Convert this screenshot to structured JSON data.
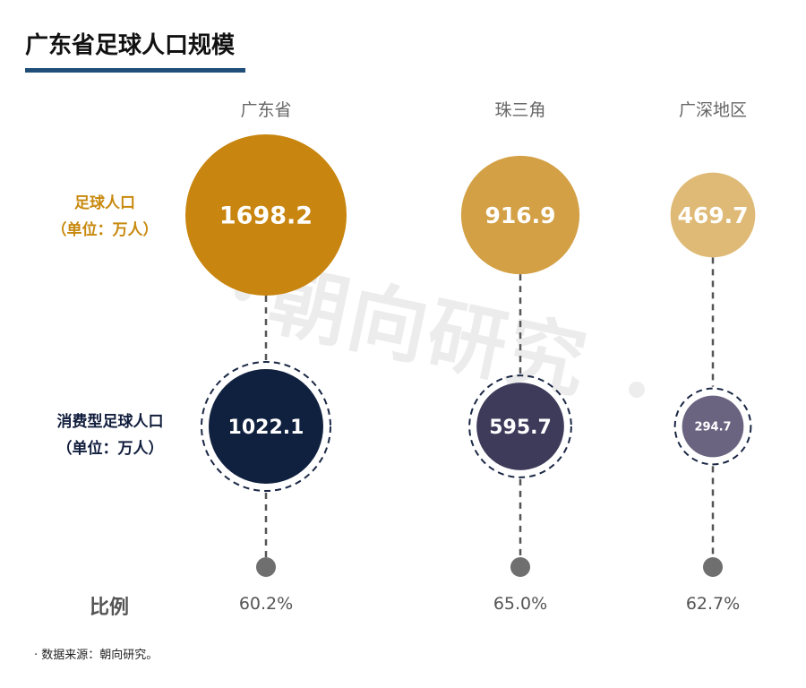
{
  "title": "广东省足球人口规模",
  "watermark": "朝向研究",
  "row_labels": {
    "football_line1": "足球人口",
    "football_line2": "（单位：万人）",
    "consumer_line1": "消费型足球人口",
    "consumer_line2": "（单位：万人）",
    "ratio": "比例"
  },
  "source": "· 数据来源：朝向研究。",
  "colors": {
    "football": [
      "#c8850f",
      "#d3a045",
      "#dfba76"
    ],
    "consumer": [
      "#10213f",
      "#3e3a5a",
      "#6a6480"
    ],
    "stem": "#555555",
    "endpoint": "#6f6f6f",
    "title_bar": "#1f4e79"
  },
  "chart_data": {
    "type": "bubble",
    "title": "广东省足球人口规模",
    "categories": [
      "广东省",
      "珠三角",
      "广深地区"
    ],
    "series": [
      {
        "name": "足球人口",
        "unit": "万人",
        "values": [
          1698.2,
          916.9,
          469.7
        ],
        "labels": [
          "1698.2",
          "916.9",
          "469.7"
        ]
      },
      {
        "name": "消费型足球人口",
        "unit": "万人",
        "values": [
          1022.1,
          595.7,
          294.7
        ],
        "labels": [
          "1022.1",
          "595.7",
          "294.7"
        ]
      }
    ],
    "ratio": {
      "name": "比例",
      "values": [
        60.2,
        65.0,
        62.7
      ],
      "labels": [
        "60.2%",
        "65.0%",
        "62.7%"
      ]
    }
  }
}
